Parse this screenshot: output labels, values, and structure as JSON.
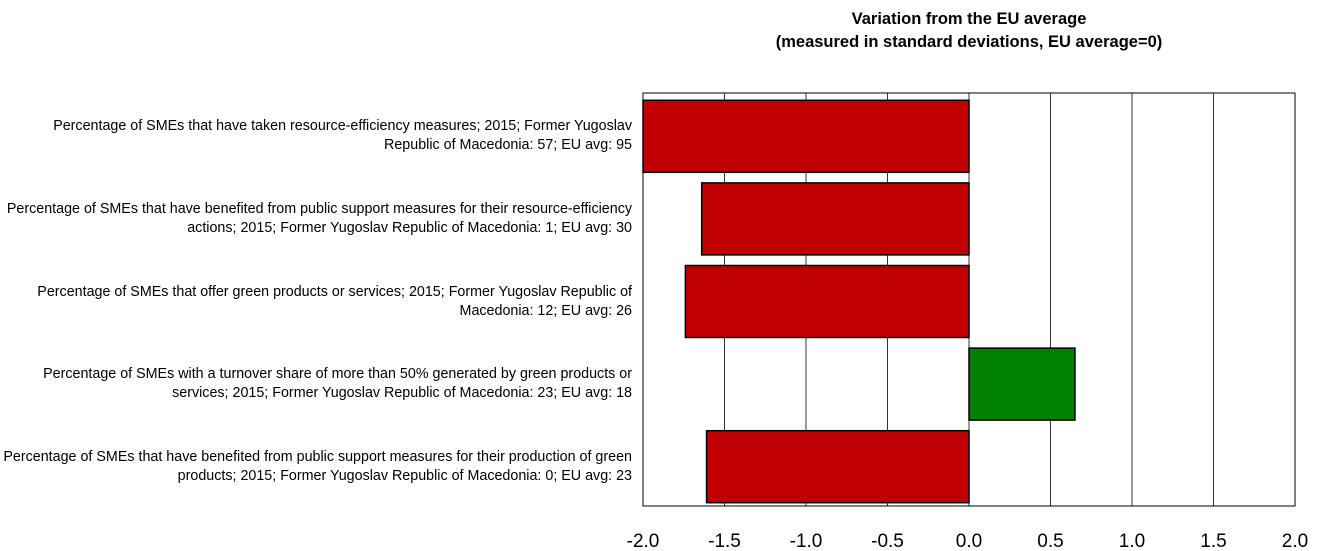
{
  "chart_data": {
    "type": "bar",
    "orientation": "horizontal",
    "title": "Variation from the EU average",
    "subtitle": "(measured in standard deviations, EU average=0)",
    "categories": [
      "Percentage of SMEs that have taken resource-efficiency measures; 2015; Former Yugoslav Republic of Macedonia: 57; EU avg: 95",
      "Percentage of SMEs that have benefited from public support measures for their resource-efficiency actions; 2015; Former Yugoslav Republic of Macedonia: 1; EU avg: 30",
      "Percentage of SMEs that offer green products or services; 2015; Former Yugoslav Republic of Macedonia: 12; EU avg: 26",
      "Percentage of SMEs with a turnover share of more than 50% generated by green products or services; 2015; Former Yugoslav Republic of Macedonia: 23; EU avg: 18",
      "Percentage of SMEs that have benefited from public support measures for their production of green products; 2015; Former Yugoslav Republic of Macedonia: 0; EU avg: 23"
    ],
    "values": [
      -2.0,
      -1.64,
      -1.74,
      0.65,
      -1.61
    ],
    "colors": [
      "#c00000",
      "#c00000",
      "#c00000",
      "#008000",
      "#c00000"
    ],
    "xlim": [
      -2.0,
      2.0
    ],
    "xticks": [
      {
        "value": -2.0,
        "label": "-2.0"
      },
      {
        "value": -1.5,
        "label": "-1.5"
      },
      {
        "value": -1.0,
        "label": "-1.0"
      },
      {
        "value": -0.5,
        "label": "-0.5"
      },
      {
        "value": 0.0,
        "label": "0.0"
      },
      {
        "value": 0.5,
        "label": "0.5"
      },
      {
        "value": 1.0,
        "label": "1.0"
      },
      {
        "value": 1.5,
        "label": "1.5"
      },
      {
        "value": 2.0,
        "label": "2.0"
      }
    ],
    "grid": true
  }
}
